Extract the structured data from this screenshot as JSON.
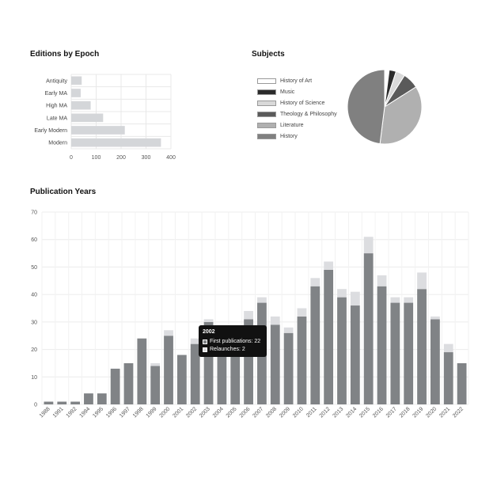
{
  "chart_data": [
    {
      "type": "bar",
      "orientation": "horizontal",
      "title": "Editions by Epoch",
      "categories": [
        "Antiquity",
        "Early MA",
        "High MA",
        "Late MA",
        "Early Modern",
        "Modern"
      ],
      "values": [
        42,
        38,
        78,
        128,
        215,
        360
      ],
      "xlim": [
        0,
        400
      ],
      "x_ticks": [
        "0",
        "100",
        "200",
        "300",
        "400"
      ],
      "grid": true,
      "color": "#d4d6d9"
    },
    {
      "type": "pie",
      "title": "Subjects",
      "labels": [
        "History of Art",
        "Music",
        "History of Science",
        "Theology & Philosophy",
        "Literature",
        "History"
      ],
      "values": [
        2,
        3,
        4,
        7,
        36,
        48
      ],
      "colors": [
        "#ffffff",
        "#2b2b2b",
        "#d9d9d9",
        "#5a5a5a",
        "#b0b0b0",
        "#808080"
      ],
      "legend": "left"
    },
    {
      "type": "bar",
      "stacked": true,
      "title": "Publication Years",
      "categories": [
        "1988",
        "1991",
        "1992",
        "1994",
        "1995",
        "1996",
        "1997",
        "1998",
        "1999",
        "2000",
        "2001",
        "2002",
        "2003",
        "2004",
        "2005",
        "2006",
        "2007",
        "2008",
        "2009",
        "2010",
        "2011",
        "2012",
        "2013",
        "2014",
        "2015",
        "2016",
        "2017",
        "2018",
        "2019",
        "2020",
        "2021",
        "2022"
      ],
      "series": [
        {
          "name": "First publications",
          "color": "#808386",
          "values": [
            1,
            1,
            1,
            4,
            4,
            13,
            15,
            24,
            14,
            25,
            18,
            22,
            30,
            25,
            20,
            31,
            37,
            29,
            26,
            32,
            43,
            49,
            39,
            36,
            55,
            43,
            37,
            37,
            42,
            31,
            19,
            15
          ]
        },
        {
          "name": "Relaunches",
          "color": "#dcdde0",
          "values": [
            0,
            0,
            0,
            0,
            0,
            0,
            0,
            0,
            1,
            2,
            0,
            2,
            1,
            2,
            0,
            3,
            2,
            3,
            2,
            3,
            3,
            3,
            3,
            5,
            6,
            4,
            2,
            2,
            6,
            1,
            3,
            0
          ]
        }
      ],
      "ylim": [
        0,
        70
      ],
      "y_ticks": [
        "0",
        "10",
        "20",
        "30",
        "40",
        "50",
        "60",
        "70"
      ],
      "grid": true,
      "tooltip": {
        "title": "2002",
        "rows": [
          {
            "label": "First publications: 22",
            "color": "#808386"
          },
          {
            "label": "Relaunches: 2",
            "color": "#dcdde0"
          }
        ]
      }
    }
  ]
}
